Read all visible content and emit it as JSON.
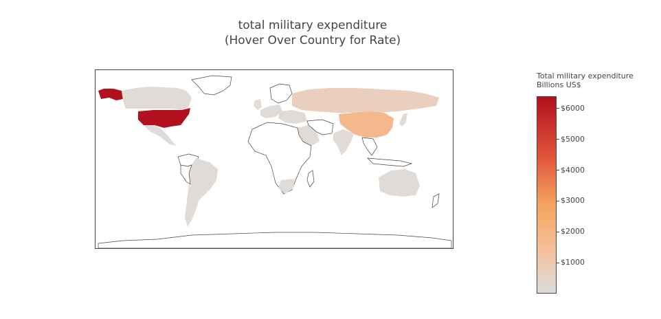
{
  "title": {
    "line1": "total military expenditure",
    "line2": "(Hover Over Country for Rate)"
  },
  "colorbar": {
    "title_line1": "Total military expenditure",
    "title_line2": "Billions US$",
    "ticks": [
      "$6000",
      "$5000",
      "$4000",
      "$3000",
      "$2000",
      "$1000"
    ],
    "tick_values": [
      6000,
      5000,
      4000,
      3000,
      2000,
      1000
    ],
    "min": 0,
    "max": 6400,
    "colorscale": [
      "#dcdcdc",
      "#f5c09a",
      "#f5a35f",
      "#e0543b",
      "#b2101e"
    ]
  },
  "map": {
    "projection": "equirectangular",
    "land_outline_color": "#444444",
    "colors": {
      "usa": "#b2101e",
      "china": "#f4b88c",
      "russia": "#ebcfbe",
      "low": "#e0dbd7",
      "none": "#ffffff"
    }
  }
}
